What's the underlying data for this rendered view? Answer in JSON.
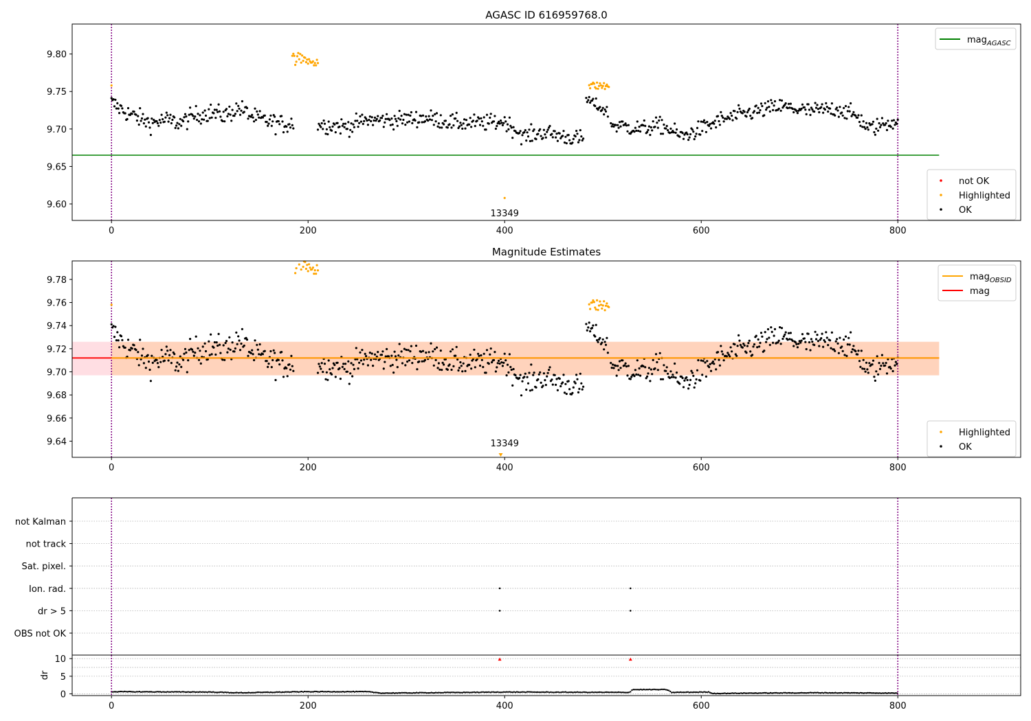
{
  "figure": {
    "title": "AGASC ID 616959768.0",
    "subtitle": "Magnitude Estimates",
    "colors": {
      "ok": "#000000",
      "highlighted": "#ffa500",
      "not_ok": "#ff0000",
      "agasc_line": "#008000",
      "mag_line": "#ff0000",
      "obsid_mag": "#ffa500",
      "band_fill": "#ffb6c1",
      "band_fill_obsid": "#ffc896",
      "vline": "#800080",
      "grid": "#b0b0b0"
    }
  },
  "chart_data": [
    {
      "type": "scatter",
      "title": "AGASC ID 616959768.0",
      "xlim": [
        -40,
        925
      ],
      "ylim": [
        9.578,
        9.84
      ],
      "xticks": [
        0,
        200,
        400,
        600,
        800
      ],
      "yticks": [
        9.6,
        9.65,
        9.7,
        9.75,
        9.8
      ],
      "ytick_labels": [
        "9.60",
        "9.65",
        "9.70",
        "9.75",
        "9.80"
      ],
      "vlines": [
        0,
        800
      ],
      "hlines": [
        {
          "name": "mag_AGASC",
          "y": 9.665,
          "x": [
            -40,
            842
          ]
        }
      ],
      "annotations": [
        {
          "text": "13349",
          "x": 400,
          "y": 9.588
        }
      ],
      "legend_upper": {
        "position": "top-right",
        "entries": [
          {
            "label": "mag",
            "sub": "AGASC",
            "kind": "line",
            "color": "#008000"
          }
        ]
      },
      "legend_lower": {
        "position": "bottom-right",
        "entries": [
          {
            "label": "not OK",
            "kind": "dot",
            "color": "#ff0000"
          },
          {
            "label": "Highlighted",
            "kind": "dot",
            "color": "#ffa500"
          },
          {
            "label": "OK",
            "kind": "dot",
            "color": "#000000"
          }
        ]
      },
      "series": [
        {
          "name": "OK",
          "color": "#000000",
          "segments": [
            {
              "x": [
                0,
                185
              ],
              "levels": [
                [
                  0,
                  9.735
                ],
                [
                  8,
                  9.728
                ],
                [
                  15,
                  9.722
                ],
                [
                  25,
                  9.716
                ],
                [
                  40,
                  9.708
                ],
                [
                  55,
                  9.712
                ],
                [
                  70,
                  9.708
                ],
                [
                  85,
                  9.718
                ],
                [
                  100,
                  9.722
                ],
                [
                  115,
                  9.718
                ],
                [
                  130,
                  9.728
                ],
                [
                  145,
                  9.715
                ],
                [
                  160,
                  9.71
                ],
                [
                  175,
                  9.706
                ],
                [
                  185,
                  9.708
                ]
              ],
              "noise": 0.011
            },
            {
              "x": [
                210,
                480
              ],
              "levels": [
                [
                  210,
                  9.706
                ],
                [
                  240,
                  9.703
                ],
                [
                  260,
                  9.712
                ],
                [
                  290,
                  9.712
                ],
                [
                  320,
                  9.715
                ],
                [
                  350,
                  9.708
                ],
                [
                  380,
                  9.708
                ],
                [
                  400,
                  9.71
                ],
                [
                  420,
                  9.69
                ],
                [
                  440,
                  9.696
                ],
                [
                  460,
                  9.69
                ],
                [
                  480,
                  9.686
                ]
              ],
              "noise": 0.01
            },
            {
              "x": [
                483,
                505
              ],
              "levels": [
                [
                  483,
                  9.74
                ],
                [
                  505,
                  9.722
                ]
              ],
              "noise": 0.007
            },
            {
              "x": [
                508,
                800
              ],
              "levels": [
                [
                  508,
                  9.706
                ],
                [
                  540,
                  9.7
                ],
                [
                  560,
                  9.705
                ],
                [
                  580,
                  9.69
                ],
                [
                  600,
                  9.7
                ],
                [
                  620,
                  9.712
                ],
                [
                  650,
                  9.722
                ],
                [
                  680,
                  9.73
                ],
                [
                  710,
                  9.724
                ],
                [
                  740,
                  9.727
                ],
                [
                  760,
                  9.716
                ],
                [
                  770,
                  9.7
                ],
                [
                  790,
                  9.708
                ],
                [
                  800,
                  9.712
                ]
              ],
              "noise": 0.01
            }
          ]
        },
        {
          "name": "Highlighted",
          "color": "#ffa500",
          "segments": [
            {
              "x": [
                184,
                210
              ],
              "levels": [
                [
                  184,
                  9.795
                ],
                [
                  210,
                  9.79
                ]
              ],
              "noise": 0.007
            },
            {
              "x": [
                486,
                506
              ],
              "levels": [
                [
                  486,
                  9.758
                ],
                [
                  506,
                  9.757
                ]
              ],
              "noise": 0.005
            }
          ],
          "points": [
            [
              0,
              9.758
            ],
            [
              400,
              9.608
            ]
          ]
        }
      ]
    },
    {
      "type": "scatter",
      "title": "Magnitude Estimates",
      "xlim": [
        -40,
        925
      ],
      "ylim": [
        9.626,
        9.796
      ],
      "xticks": [
        0,
        200,
        400,
        600,
        800
      ],
      "yticks": [
        9.64,
        9.66,
        9.68,
        9.7,
        9.72,
        9.74,
        9.76,
        9.78
      ],
      "ytick_labels": [
        "9.64",
        "9.66",
        "9.68",
        "9.70",
        "9.72",
        "9.74",
        "9.76",
        "9.78"
      ],
      "vlines": [
        0,
        800
      ],
      "band": {
        "y": [
          9.697,
          9.726
        ],
        "x": [
          -40,
          842
        ]
      },
      "band_obsid": {
        "y": [
          9.697,
          9.726
        ],
        "x": [
          0,
          842
        ]
      },
      "hlines": [
        {
          "name": "mag",
          "y": 9.712,
          "x": [
            -40,
            842
          ],
          "color": "#ff0000"
        },
        {
          "name": "mag_OBSID",
          "y": 9.712,
          "x": [
            0,
            842
          ],
          "color": "#ffa500"
        }
      ],
      "annotations": [
        {
          "text": "13349",
          "x": 400,
          "y": 9.632
        }
      ],
      "legend_upper": {
        "position": "top-right",
        "entries": [
          {
            "label": "mag",
            "sub": "OBSID",
            "kind": "line",
            "color": "#ffa500"
          },
          {
            "label": "mag",
            "sub": "",
            "kind": "line",
            "color": "#ff0000"
          }
        ]
      },
      "legend_lower": {
        "position": "bottom-right",
        "entries": [
          {
            "label": "Highlighted",
            "kind": "dot",
            "color": "#ffa500"
          },
          {
            "label": "OK",
            "kind": "dot",
            "color": "#000000"
          }
        ]
      }
    },
    {
      "type": "scatter",
      "title": "",
      "xlim": [
        -40,
        925
      ],
      "xticks": [
        0,
        200,
        400,
        600,
        800
      ],
      "vlines": [
        0,
        800
      ],
      "flag_rows": [
        "not Kalman",
        "not track",
        "Sat. pixel.",
        "Ion. rad.",
        "dr > 5",
        "OBS not OK"
      ],
      "flag_points": [
        {
          "row": "Ion. rad.",
          "x": [
            395,
            528
          ]
        },
        {
          "row": "dr > 5",
          "x": [
            395,
            528
          ]
        }
      ],
      "dr": {
        "ylabel": "dr",
        "ylim": [
          -0.5,
          11
        ],
        "yticks": [
          0,
          5,
          10
        ],
        "ytick_labels": [
          "0",
          "5",
          "10"
        ],
        "levels": [
          [
            0,
            0.6
          ],
          [
            100,
            0.5
          ],
          [
            130,
            0.3
          ],
          [
            200,
            0.6
          ],
          [
            260,
            0.6
          ],
          [
            275,
            0.2
          ],
          [
            400,
            0.5
          ],
          [
            527,
            0.4
          ],
          [
            530,
            1.2
          ],
          [
            565,
            1.2
          ],
          [
            570,
            0.4
          ],
          [
            608,
            0.5
          ],
          [
            612,
            0.1
          ],
          [
            650,
            0.2
          ],
          [
            720,
            0.3
          ],
          [
            800,
            0.2
          ]
        ],
        "flags": [
          {
            "x": 395,
            "y": 9.8
          },
          {
            "x": 528,
            "y": 9.8
          }
        ]
      }
    }
  ]
}
